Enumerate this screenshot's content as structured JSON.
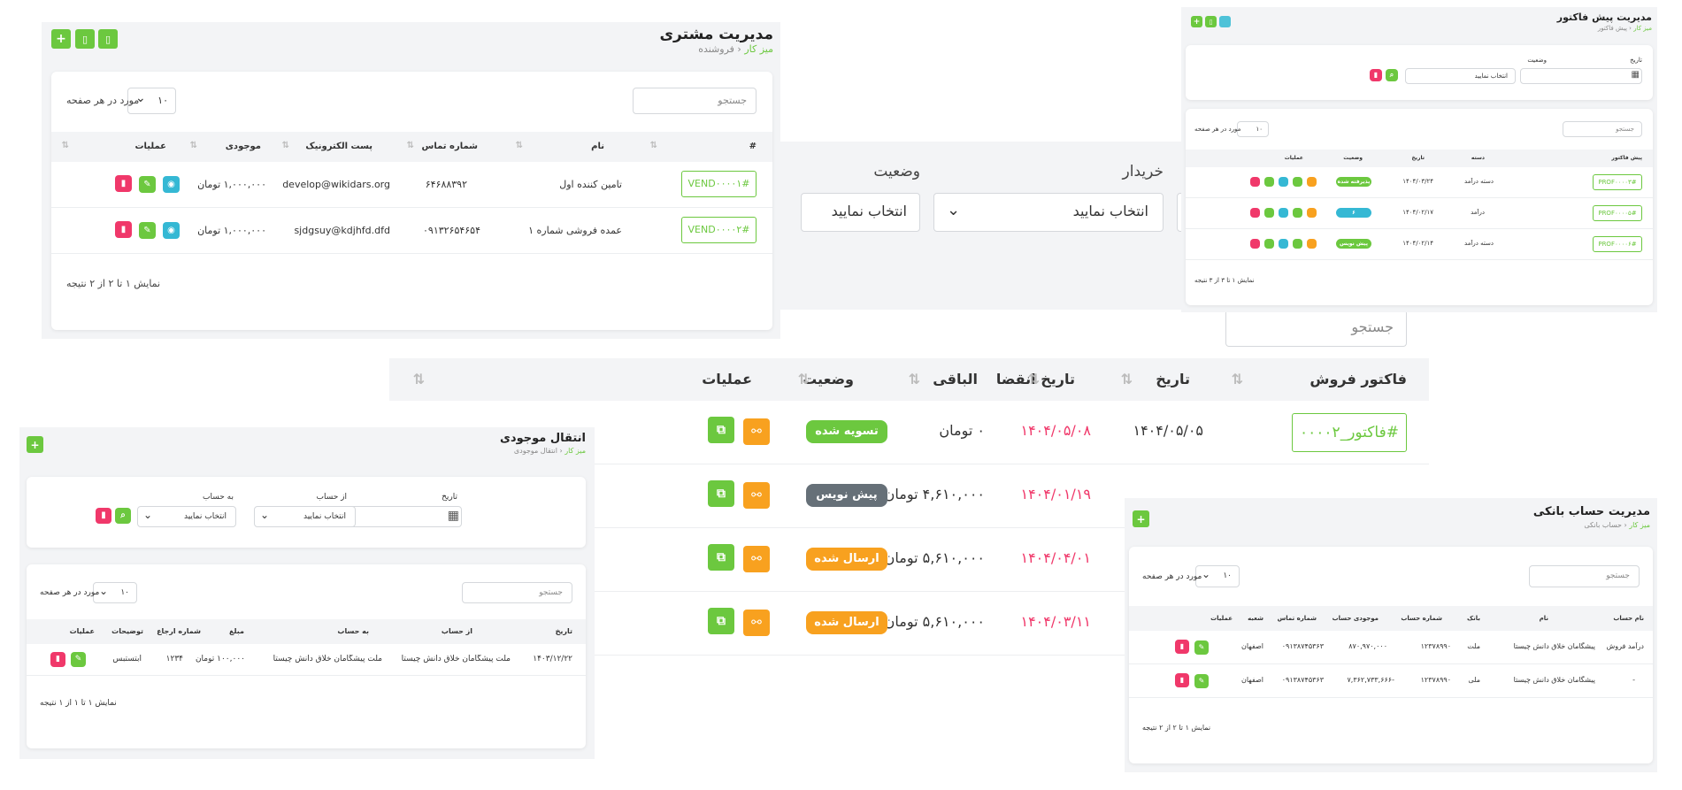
{
  "invoice_page": {
    "filters": {
      "buyer_label": "خریدار",
      "status_label": "وضعیت",
      "buyer_value": "انتخاب نمایید",
      "status_value": "انتخاب نمایید"
    },
    "search_placeholder": "جستجو",
    "columns": [
      "فاکتور فروش",
      "تاریخ",
      "تاریخ انقضا",
      "الباقی",
      "وضعیت",
      "عملیات"
    ],
    "rows": [
      {
        "id": "#فاکتور_۰۰۰۰۲",
        "date": "۱۴۰۴/۰۵/۰۵",
        "expiry": "۱۴۰۴/۰۵/۰۸",
        "remaining": "۰ تومان",
        "status": "تسویه شده"
      },
      {
        "id": "",
        "date": "",
        "expiry": "۱۴۰۴/۰۱/۱۹",
        "remaining": "۴,۶۱۰,۰۰۰ تومان",
        "status": "پیش نویس"
      },
      {
        "id": "",
        "date": "",
        "expiry": "۱۴۰۴/۰۴/۰۱",
        "remaining": "۵,۶۱۰,۰۰۰ تومان",
        "status": "ارسال شده"
      },
      {
        "id": "",
        "date": "",
        "expiry": "۱۴۰۴/۰۳/۱۱",
        "remaining": "۵,۶۱۰,۰۰۰ تومان",
        "status": "ارسال شده"
      }
    ],
    "status_colors": {
      "settled": "#6cc83f",
      "draft": "#667078",
      "sent": "#f8a11f"
    }
  },
  "customer_page": {
    "title": "مدیریت مشتری",
    "breadcrumb": {
      "home": "میز کار",
      "current": "فروشنده"
    },
    "search_placeholder": "جستجو",
    "per_page_value": "۱۰",
    "per_page_label": "مورد در هر صفحه",
    "columns": [
      "#",
      "نام",
      "شماره تماس",
      "پست الکترونیک",
      "موجودی",
      "عملیات"
    ],
    "rows": [
      {
        "id": "VEND۰۰۰۰۱#",
        "name": "تامین کننده اول",
        "phone": "۶۴۶۸۸۳۹۲",
        "email": "develop@wikidars.org",
        "balance": "۱,۰۰۰,۰۰۰ تومان"
      },
      {
        "id": "VEND۰۰۰۰۲#",
        "name": "عمده فروشی شماره ۱",
        "phone": "۰۹۱۳۲۶۵۴۶۵۴",
        "email": "sjdgsuy@kdjhfd.dfd",
        "balance": "۱,۰۰۰,۰۰۰ تومان"
      }
    ],
    "footer": "نمایش ۱ تا ۲ از ۲ نتیجه"
  },
  "proforma_page": {
    "title": "مدیریت پیش فاکتور",
    "breadcrumb": {
      "home": "میز کار",
      "current": "پیش فاکتور"
    },
    "date_label": "تاریخ",
    "status_label": "وضعیت",
    "status_value": "انتخاب نمایید",
    "search_placeholder": "جستجو",
    "per_page_value": "۱۰",
    "per_page_label": "مورد در هر صفحه",
    "columns": [
      "پیش فاکتور",
      "دسته",
      "تاریخ",
      "وضعیت",
      "عملیات"
    ],
    "rows": [
      {
        "id": "PROF۰۰۰۰۳#",
        "category": "دسته درآمد",
        "date": "۱۴۰۴/۰۳/۲۴",
        "status": "پذیرفته شده"
      },
      {
        "id": "PROF۰۰۰۰۵#",
        "category": "درآمد",
        "date": "۱۴۰۴/۰۲/۱۷",
        "status": "۶"
      },
      {
        "id": "PROF۰۰۰۰۶#",
        "category": "دسته درآمد",
        "date": "۱۴۰۴/۰۲/۱۴",
        "status": "پیش نویس"
      }
    ],
    "footer": "نمایش ۱ تا ۳ از ۳ نتیجه"
  },
  "transfer_page": {
    "title": "انتقال موجودی",
    "breadcrumb": {
      "home": "میز کار",
      "current": "انتقال موجودی"
    },
    "date_label": "تاریخ",
    "from_label": "از حساب",
    "to_label": "به حساب",
    "from_value": "انتخاب نمایید",
    "to_value": "انتخاب نمایید",
    "search_placeholder": "جستجو",
    "per_page_value": "۱۰",
    "per_page_label": "مورد در هر صفحه",
    "columns": [
      "تاریخ",
      "از حساب",
      "به حساب",
      "مبلغ",
      "شماره ارجاع",
      "توضیحات",
      "عملیات"
    ],
    "rows": [
      {
        "date": "۱۴۰۳/۱۲/۲۲",
        "from": "ملت پیشگامان خلاق دانش چیستا",
        "to": "ملت پیشگامان خلاق دانش چیستا",
        "amount": "۱۰۰,۰۰۰ تومان",
        "ref": "۱۲۳۴",
        "desc": "ابتستبس"
      }
    ],
    "footer": "نمایش ۱ تا ۱ از ۱ نتیجه"
  },
  "bank_page": {
    "title": "مدیریت حساب بانکی",
    "breadcrumb": {
      "home": "میز کار",
      "current": "حساب بانکی"
    },
    "search_placeholder": "جستجو",
    "per_page_value": "۱۰",
    "per_page_label": "مورد در هر صفحه",
    "columns": [
      "نام حساب",
      "نام",
      "بانک",
      "شماره حساب",
      "موجودی حساب",
      "شماره تماس",
      "شعبه",
      "عملیات"
    ],
    "rows": [
      {
        "account_name": "درآمد فروش",
        "name": "پیشگامان خلاق دانش چیستا",
        "bank": "ملت",
        "account_no": "۱۲۳۷۸۹۹۰",
        "balance": "۸۷۰,۹۷۰,۰۰۰",
        "phone": "۰۹۱۳۸۷۴۵۳۶۳",
        "branch": "اصفهان"
      },
      {
        "account_name": "-",
        "name": "پیشگامان خلاق دانش چیستا",
        "bank": "ملی",
        "account_no": "۱۲۳۷۸۹۹۰",
        "balance": "-۷,۳۶۲,۷۳۳,۶۶۶",
        "phone": "۰۹۱۳۸۷۴۵۳۶۳",
        "branch": "اصفهان"
      }
    ],
    "footer": "نمایش ۱ تا ۲ از ۲ نتیجه"
  },
  "icons": {
    "add": "+",
    "file": "▯",
    "view": "◉",
    "edit": "✎",
    "delete": "▮",
    "link": "⚯",
    "copy": "⧉",
    "search": "⌕",
    "calendar": "▦",
    "chevron": "⌄",
    "sort": "⇅"
  }
}
